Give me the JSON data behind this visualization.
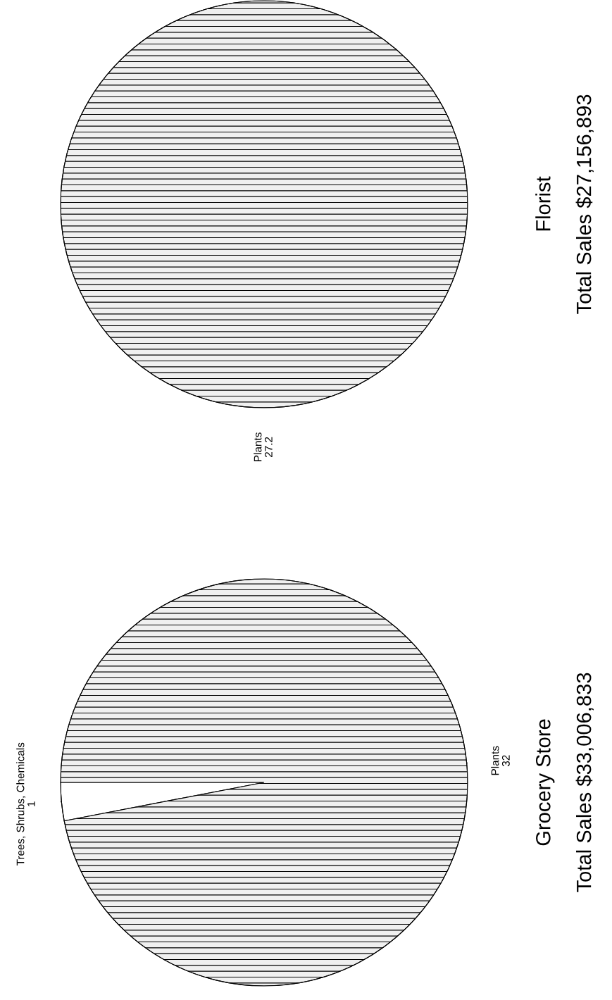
{
  "chart_data": [
    {
      "type": "pie",
      "title": "Florist",
      "subtitle": "Total Sales $27,156,893",
      "categories": [
        "Plants"
      ],
      "values": [
        27.2
      ],
      "colors": [
        "#f0f0f0"
      ],
      "data_labels": true
    },
    {
      "type": "pie",
      "title": "Grocery Store",
      "subtitle": "Total Sales $33,006,833",
      "categories": [
        "Trees, Shrubs, Chemicals",
        "Plants"
      ],
      "values": [
        1,
        32
      ],
      "colors": [
        "#ffffff",
        "#f0f0f0"
      ],
      "data_labels": true
    }
  ]
}
